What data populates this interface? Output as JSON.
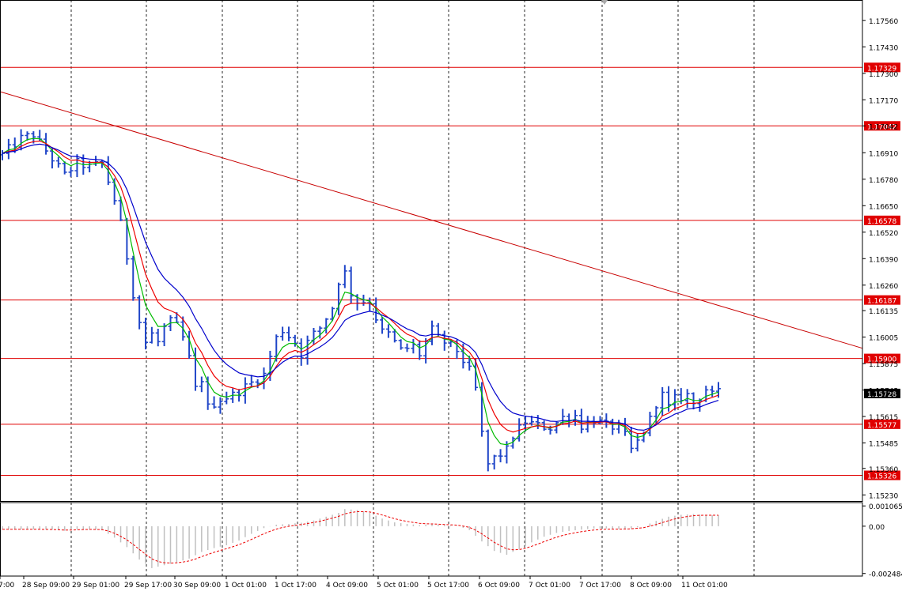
{
  "chart_data": [
    {
      "type": "candlestick",
      "symbol_pane": "price",
      "y_ticks": [
        "1.17560",
        "1.17430",
        "1.17300",
        "1.17170",
        "1.17042",
        "1.16910",
        "1.16780",
        "1.16650",
        "1.16520",
        "1.16390",
        "1.16260",
        "1.16135",
        "1.16005",
        "1.15875",
        "1.15745",
        "1.15615",
        "1.15485",
        "1.15360",
        "1.15230"
      ],
      "ylim": [
        1.152,
        1.1766
      ],
      "x_ticks": [
        "7:00",
        "28 Sep 09:00",
        "29 Sep 01:00",
        "29 Sep 17:00",
        "30 Sep 09:00",
        "1 Oct 01:00",
        "1 Oct 17:00",
        "4 Oct 09:00",
        "5 Oct 01:00",
        "5 Oct 17:00",
        "6 Oct 09:00",
        "7 Oct 01:00",
        "7 Oct 17:00",
        "8 Oct 09:00",
        "11 Oct 01:00"
      ],
      "horizontal_levels": [
        {
          "label": "1.17329",
          "value": 1.17329
        },
        {
          "label": "1.17042",
          "value": 1.17042
        },
        {
          "label": "1.16578",
          "value": 1.16578
        },
        {
          "label": "1.16187",
          "value": 1.16187
        },
        {
          "label": "1.15900",
          "value": 1.159
        },
        {
          "label": "1.15577",
          "value": 1.15577
        },
        {
          "label": "1.15326",
          "value": 1.15326
        }
      ],
      "current_price": {
        "label": "1.15728",
        "value": 1.15728
      },
      "trendline": {
        "from": 1.1721,
        "to": 1.1595
      },
      "close_path": [
        [
          0,
          1.169
        ],
        [
          3,
          1.1698
        ],
        [
          5,
          1.17
        ],
        [
          8,
          1.1688
        ],
        [
          10,
          1.168
        ],
        [
          12,
          1.1686
        ],
        [
          14,
          1.1684
        ],
        [
          16,
          1.1686
        ],
        [
          18,
          1.1668
        ],
        [
          19,
          1.1656
        ],
        [
          20,
          1.164
        ],
        [
          21,
          1.1622
        ],
        [
          22,
          1.1608
        ],
        [
          23,
          1.1598
        ],
        [
          24,
          1.1602
        ],
        [
          25,
          1.1598
        ],
        [
          26,
          1.1605
        ],
        [
          27,
          1.1608
        ],
        [
          28,
          1.1606
        ],
        [
          29,
          1.16
        ],
        [
          30,
          1.159
        ],
        [
          31,
          1.1575
        ],
        [
          32,
          1.158
        ],
        [
          33,
          1.1566
        ],
        [
          35,
          1.157
        ],
        [
          37,
          1.1572
        ],
        [
          39,
          1.1576
        ],
        [
          40,
          1.1578
        ],
        [
          42,
          1.1582
        ],
        [
          44,
          1.16
        ],
        [
          45,
          1.1604
        ],
        [
          47,
          1.1598
        ],
        [
          48,
          1.1592
        ],
        [
          49,
          1.1598
        ],
        [
          50,
          1.1602
        ],
        [
          51,
          1.1605
        ],
        [
          53,
          1.1615
        ],
        [
          54,
          1.1628
        ],
        [
          55,
          1.1632
        ],
        [
          56,
          1.1622
        ],
        [
          57,
          1.1618
        ],
        [
          59,
          1.1618
        ],
        [
          60,
          1.161
        ],
        [
          61,
          1.1603
        ],
        [
          62,
          1.1602
        ],
        [
          63,
          1.1598
        ],
        [
          64,
          1.1594
        ],
        [
          66,
          1.1596
        ],
        [
          67,
          1.1592
        ],
        [
          68,
          1.1598
        ],
        [
          69,
          1.1604
        ],
        [
          70,
          1.16
        ],
        [
          71,
          1.1598
        ],
        [
          72,
          1.1596
        ],
        [
          73,
          1.1594
        ],
        [
          74,
          1.1589
        ],
        [
          75,
          1.1584
        ],
        [
          76,
          1.1575
        ],
        [
          77,
          1.1553
        ],
        [
          78,
          1.1538
        ],
        [
          79,
          1.1541
        ],
        [
          80,
          1.1543
        ],
        [
          81,
          1.1545
        ],
        [
          82,
          1.1552
        ],
        [
          84,
          1.1559
        ],
        [
          86,
          1.1557
        ],
        [
          88,
          1.1556
        ],
        [
          90,
          1.1561
        ],
        [
          92,
          1.1562
        ],
        [
          93,
          1.1557
        ],
        [
          95,
          1.156
        ],
        [
          97,
          1.1557
        ],
        [
          99,
          1.1556
        ],
        [
          100,
          1.1552
        ],
        [
          101,
          1.1545
        ],
        [
          102,
          1.1549
        ],
        [
          104,
          1.156
        ],
        [
          105,
          1.1568
        ],
        [
          106,
          1.1572
        ],
        [
          107,
          1.1566
        ],
        [
          108,
          1.157
        ],
        [
          110,
          1.1572
        ],
        [
          111,
          1.1568
        ],
        [
          112,
          1.1571
        ],
        [
          113,
          1.1575
        ],
        [
          114,
          1.1572
        ],
        [
          115,
          1.1573
        ]
      ]
    },
    {
      "type": "histogram",
      "symbol_pane": "oscillator",
      "y_ticks": [
        "0.001065",
        "0.00",
        "-0.002484"
      ],
      "ylim": [
        -0.00262,
        0.00124
      ],
      "signal_line": "dotted-red",
      "values": [
        [
          0,
          -0.00016
        ],
        [
          4,
          -0.00016
        ],
        [
          8,
          -0.00018
        ],
        [
          10,
          -0.00024
        ],
        [
          12,
          -0.00016
        ],
        [
          14,
          -0.00015
        ],
        [
          16,
          -0.0002
        ],
        [
          18,
          -0.0006
        ],
        [
          20,
          -0.0011
        ],
        [
          22,
          -0.00175
        ],
        [
          24,
          -0.0022
        ],
        [
          26,
          -0.00205
        ],
        [
          28,
          -0.0019
        ],
        [
          30,
          -0.0017
        ],
        [
          32,
          -0.00135
        ],
        [
          34,
          -0.00115
        ],
        [
          36,
          -0.001
        ],
        [
          38,
          -0.00075
        ],
        [
          40,
          -0.0004
        ],
        [
          42,
          -0.0001
        ],
        [
          44,
          8e-05
        ],
        [
          46,
          0.00012
        ],
        [
          48,
          0.00018
        ],
        [
          50,
          0.0003
        ],
        [
          52,
          0.0005
        ],
        [
          54,
          0.0007
        ],
        [
          55,
          0.0009
        ],
        [
          57,
          0.00085
        ],
        [
          59,
          0.0007
        ],
        [
          61,
          0.0004
        ],
        [
          63,
          0.0002
        ],
        [
          65,
          0.00012
        ],
        [
          67,
          6e-05
        ],
        [
          69,
          0.0001
        ],
        [
          71,
          6e-05
        ],
        [
          73,
          2e-05
        ],
        [
          75,
          -0.0002
        ],
        [
          77,
          -0.0008
        ],
        [
          79,
          -0.0013
        ],
        [
          81,
          -0.0015
        ],
        [
          83,
          -0.0012
        ],
        [
          85,
          -0.00085
        ],
        [
          87,
          -0.00055
        ],
        [
          89,
          -0.00035
        ],
        [
          91,
          -0.00025
        ],
        [
          93,
          -0.00018
        ],
        [
          95,
          -0.00012
        ],
        [
          97,
          -0.00012
        ],
        [
          99,
          -0.00015
        ],
        [
          101,
          -0.00012
        ],
        [
          103,
          0.0
        ],
        [
          105,
          0.00028
        ],
        [
          107,
          0.0005
        ],
        [
          109,
          0.0006
        ],
        [
          111,
          0.00064
        ],
        [
          113,
          0.00058
        ],
        [
          115,
          0.00058
        ]
      ]
    }
  ],
  "palette": {
    "up_bar": "#1f45c8",
    "ma_fast": "#00bb00",
    "ma_mid": "#ee0000",
    "ma_slow": "#0000cc",
    "level_line": "#e00000",
    "trendline": "#c80000",
    "grid": "#000000",
    "histogram": "#c0c0c0"
  }
}
